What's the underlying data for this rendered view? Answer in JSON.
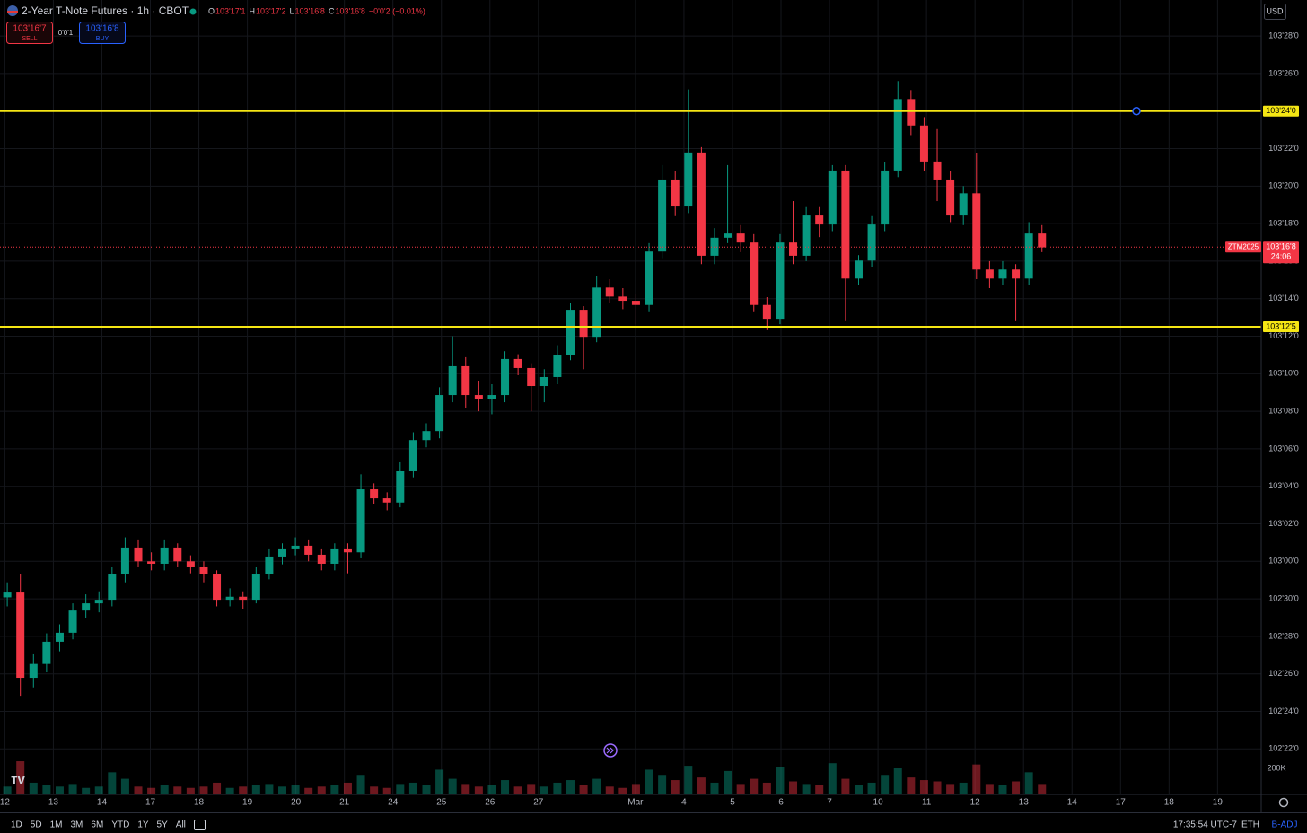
{
  "chart_data": {
    "type": "candlestick",
    "title": "2-Year T-Note Futures · 1h · CBOT",
    "ohlc": [
      {
        "key": "O",
        "value": "103'17'1"
      },
      {
        "key": "H",
        "value": "103'17'2"
      },
      {
        "key": "L",
        "value": "103'16'8"
      },
      {
        "key": "C",
        "value": "103'16'8"
      }
    ],
    "change": "−0'0'2 (−0.01%)",
    "sell": {
      "price": "103'16'7",
      "label": "SELL"
    },
    "spread": "0'0'1",
    "buy": {
      "price": "103'16'8",
      "label": "BUY"
    },
    "currency": "USD",
    "up_color": "#089981",
    "down_color": "#f23645",
    "grid": true,
    "x": [
      0.05,
      0.32,
      0.59,
      0.86,
      1.13,
      1.4,
      1.67,
      1.94,
      2.21,
      2.48,
      2.75,
      3.02,
      3.29,
      3.56,
      3.83,
      4.1,
      4.37,
      4.64,
      4.91,
      5.18,
      5.45,
      5.72,
      5.99,
      6.26,
      6.53,
      6.8,
      7.07,
      7.34,
      7.61,
      7.88,
      8.15,
      8.42,
      8.69,
      8.96,
      9.23,
      9.5,
      9.77,
      10.04,
      10.31,
      10.58,
      10.85,
      11.12,
      11.39,
      11.66,
      11.93,
      12.2,
      12.47,
      12.74,
      13.01,
      13.28,
      13.55,
      13.82,
      14.09,
      14.36,
      14.63,
      14.9,
      15.17,
      15.44,
      15.71,
      15.98,
      16.25,
      16.52,
      16.79,
      17.06,
      17.33,
      17.6,
      17.87,
      18.14,
      18.41,
      18.68,
      18.95,
      19.22,
      19.49,
      19.76,
      20.03,
      20.3,
      20.57,
      20.84,
      21.11,
      21.38
    ],
    "candles": [
      [
        102.94,
        102.965,
        102.925,
        102.948
      ],
      [
        102.948,
        102.978,
        102.776,
        102.806
      ],
      [
        102.806,
        102.845,
        102.79,
        102.829
      ],
      [
        102.829,
        102.88,
        102.815,
        102.866
      ],
      [
        102.866,
        102.895,
        102.85,
        102.881
      ],
      [
        102.881,
        102.93,
        102.87,
        102.918
      ],
      [
        102.918,
        102.945,
        102.905,
        102.93
      ],
      [
        102.93,
        102.95,
        102.915,
        102.936
      ],
      [
        102.936,
        102.99,
        102.925,
        102.978
      ],
      [
        102.978,
        103.04,
        102.965,
        103.023
      ],
      [
        103.023,
        103.035,
        102.99,
        103.0
      ],
      [
        103.0,
        103.015,
        102.985,
        102.996
      ],
      [
        102.996,
        103.035,
        102.985,
        103.023
      ],
      [
        103.023,
        103.03,
        102.99,
        103.0
      ],
      [
        103.0,
        103.01,
        102.98,
        102.99
      ],
      [
        102.99,
        103.0,
        102.965,
        102.978
      ],
      [
        102.978,
        102.985,
        102.925,
        102.936
      ],
      [
        102.936,
        102.955,
        102.925,
        102.941
      ],
      [
        102.941,
        102.95,
        102.92,
        102.936
      ],
      [
        102.936,
        102.99,
        102.93,
        102.978
      ],
      [
        102.978,
        103.02,
        102.97,
        103.008
      ],
      [
        103.008,
        103.03,
        102.995,
        103.02
      ],
      [
        103.02,
        103.04,
        103.01,
        103.026
      ],
      [
        103.026,
        103.035,
        103.0,
        103.011
      ],
      [
        103.011,
        103.02,
        102.985,
        102.996
      ],
      [
        102.996,
        103.03,
        102.985,
        103.02
      ],
      [
        103.02,
        103.03,
        102.98,
        103.015
      ],
      [
        103.015,
        103.145,
        103.005,
        103.12
      ],
      [
        103.12,
        103.13,
        103.095,
        103.105
      ],
      [
        103.105,
        103.115,
        103.085,
        103.098
      ],
      [
        103.098,
        103.165,
        103.09,
        103.15
      ],
      [
        103.15,
        103.215,
        103.14,
        103.202
      ],
      [
        103.202,
        103.23,
        103.19,
        103.217
      ],
      [
        103.217,
        103.29,
        103.205,
        103.277
      ],
      [
        103.277,
        103.375,
        103.265,
        103.325
      ],
      [
        103.325,
        103.34,
        103.255,
        103.277
      ],
      [
        103.277,
        103.3,
        103.25,
        103.27
      ],
      [
        103.27,
        103.295,
        103.245,
        103.277
      ],
      [
        103.277,
        103.35,
        103.265,
        103.337
      ],
      [
        103.337,
        103.345,
        103.31,
        103.322
      ],
      [
        103.322,
        103.33,
        103.25,
        103.292
      ],
      [
        103.292,
        103.32,
        103.265,
        103.307
      ],
      [
        103.307,
        103.36,
        103.295,
        103.344
      ],
      [
        103.344,
        103.43,
        103.335,
        103.419
      ],
      [
        103.419,
        103.425,
        103.32,
        103.374
      ],
      [
        103.374,
        103.475,
        103.365,
        103.456
      ],
      [
        103.456,
        103.47,
        103.43,
        103.441
      ],
      [
        103.441,
        103.455,
        103.42,
        103.434
      ],
      [
        103.434,
        103.445,
        103.395,
        103.427
      ],
      [
        103.427,
        103.53,
        103.415,
        103.516
      ],
      [
        103.516,
        103.66,
        103.505,
        103.636
      ],
      [
        103.636,
        103.65,
        103.575,
        103.591
      ],
      [
        103.591,
        103.786,
        103.58,
        103.681
      ],
      [
        103.681,
        103.69,
        103.495,
        103.509
      ],
      [
        103.509,
        103.555,
        103.495,
        103.539
      ],
      [
        103.539,
        103.66,
        103.53,
        103.546
      ],
      [
        103.546,
        103.56,
        103.515,
        103.531
      ],
      [
        103.531,
        103.545,
        103.415,
        103.427
      ],
      [
        103.427,
        103.44,
        103.385,
        103.404
      ],
      [
        103.404,
        103.545,
        103.395,
        103.531
      ],
      [
        103.531,
        103.6,
        103.495,
        103.509
      ],
      [
        103.509,
        103.59,
        103.5,
        103.576
      ],
      [
        103.576,
        103.59,
        103.54,
        103.561
      ],
      [
        103.561,
        103.66,
        103.55,
        103.651
      ],
      [
        103.651,
        103.66,
        103.4,
        103.471
      ],
      [
        103.471,
        103.51,
        103.46,
        103.501
      ],
      [
        103.501,
        103.575,
        103.49,
        103.561
      ],
      [
        103.561,
        103.665,
        103.55,
        103.651
      ],
      [
        103.651,
        103.8,
        103.64,
        103.77
      ],
      [
        103.77,
        103.785,
        103.71,
        103.726
      ],
      [
        103.726,
        103.74,
        103.65,
        103.666
      ],
      [
        103.666,
        103.72,
        103.6,
        103.636
      ],
      [
        103.636,
        103.65,
        103.565,
        103.576
      ],
      [
        103.576,
        103.625,
        103.56,
        103.613
      ],
      [
        103.613,
        103.68,
        103.47,
        103.486
      ],
      [
        103.486,
        103.5,
        103.455,
        103.471
      ],
      [
        103.471,
        103.5,
        103.46,
        103.486
      ],
      [
        103.486,
        103.495,
        103.4,
        103.471
      ],
      [
        103.471,
        103.565,
        103.46,
        103.546
      ],
      [
        103.546,
        103.56,
        103.515,
        103.523
      ]
    ],
    "volume": [
      60000,
      255000,
      90000,
      70000,
      60000,
      80000,
      50000,
      60000,
      170000,
      120000,
      60000,
      50000,
      70000,
      60000,
      50000,
      60000,
      90000,
      50000,
      60000,
      70000,
      80000,
      60000,
      70000,
      50000,
      60000,
      70000,
      90000,
      150000,
      60000,
      50000,
      80000,
      90000,
      70000,
      190000,
      120000,
      80000,
      60000,
      70000,
      110000,
      60000,
      80000,
      60000,
      90000,
      110000,
      70000,
      120000,
      60000,
      50000,
      80000,
      190000,
      150000,
      110000,
      220000,
      130000,
      90000,
      180000,
      80000,
      120000,
      90000,
      210000,
      100000,
      80000,
      70000,
      240000,
      120000,
      70000,
      90000,
      150000,
      200000,
      130000,
      110000,
      100000,
      80000,
      90000,
      230000,
      80000,
      70000,
      100000,
      170000,
      80000
    ],
    "vol_ylim": [
      0,
      200000
    ],
    "vol_ticks": [
      {
        "value": 200000,
        "label": "200K"
      }
    ],
    "xlim": [
      -0.1,
      25.9
    ],
    "xticks": [
      {
        "value": 0,
        "label": "12"
      },
      {
        "value": 1,
        "label": "13"
      },
      {
        "value": 2,
        "label": "14"
      },
      {
        "value": 3,
        "label": "17"
      },
      {
        "value": 4,
        "label": "18"
      },
      {
        "value": 5,
        "label": "19"
      },
      {
        "value": 6,
        "label": "20"
      },
      {
        "value": 7,
        "label": "21"
      },
      {
        "value": 8,
        "label": "24"
      },
      {
        "value": 9,
        "label": "25"
      },
      {
        "value": 10,
        "label": "26"
      },
      {
        "value": 11,
        "label": "27"
      },
      {
        "value": 13,
        "label": "Mar"
      },
      {
        "value": 14,
        "label": "4"
      },
      {
        "value": 15,
        "label": "5"
      },
      {
        "value": 16,
        "label": "6"
      },
      {
        "value": 17,
        "label": "7"
      },
      {
        "value": 18,
        "label": "10"
      },
      {
        "value": 19,
        "label": "11"
      },
      {
        "value": 20,
        "label": "12"
      },
      {
        "value": 21,
        "label": "13"
      },
      {
        "value": 22,
        "label": "14"
      },
      {
        "value": 23,
        "label": "17"
      },
      {
        "value": 24,
        "label": "18"
      },
      {
        "value": 25,
        "label": "19"
      }
    ],
    "ylim": [
      102.664,
      103.935
    ],
    "yticks": [
      {
        "value": 102.6875,
        "label": "102'22'0"
      },
      {
        "value": 102.75,
        "label": "102'24'0"
      },
      {
        "value": 102.8125,
        "label": "102'26'0"
      },
      {
        "value": 102.875,
        "label": "102'28'0"
      },
      {
        "value": 102.9375,
        "label": "102'30'0"
      },
      {
        "value": 103,
        "label": "103'00'0"
      },
      {
        "value": 103.0625,
        "label": "103'02'0"
      },
      {
        "value": 103.125,
        "label": "103'04'0"
      },
      {
        "value": 103.1875,
        "label": "103'06'0"
      },
      {
        "value": 103.25,
        "label": "103'08'0"
      },
      {
        "value": 103.3125,
        "label": "103'10'0"
      },
      {
        "value": 103.375,
        "label": "103'12'0"
      },
      {
        "value": 103.4375,
        "label": "103'14'0"
      },
      {
        "value": 103.5,
        "label": "103'16'0"
      },
      {
        "value": 103.5625,
        "label": "103'18'0"
      },
      {
        "value": 103.625,
        "label": "103'20'0"
      },
      {
        "value": 103.6875,
        "label": "103'22'0"
      },
      {
        "value": 103.75,
        "label": "103'24'0"
      },
      {
        "value": 103.8125,
        "label": "103'26'0"
      },
      {
        "value": 103.875,
        "label": "103'28'0"
      }
    ],
    "levels": [
      {
        "value": 103.75,
        "label": "103'24'0"
      },
      {
        "value": 103.390625,
        "label": "103'12'5"
      }
    ],
    "level_color": "#f5e614",
    "last_price": {
      "value": 103.5234375,
      "label": "103'16'8",
      "symbol": "ZTM2025",
      "countdown": "24:06"
    },
    "ranges": [
      "1D",
      "5D",
      "1M",
      "3M",
      "6M",
      "YTD",
      "1Y",
      "5Y",
      "All"
    ],
    "clock": "17:35:54 UTC-7",
    "session": "ETH",
    "adjustment": "B-ADJ"
  }
}
